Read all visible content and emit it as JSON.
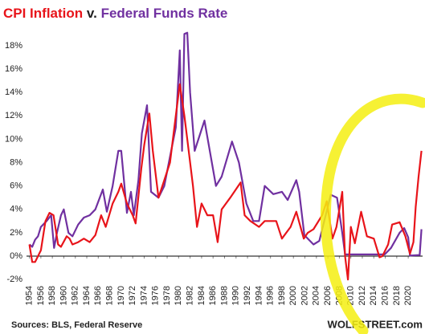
{
  "chart_data": {
    "type": "line",
    "title": [
      "CPI Inflation",
      "v.",
      "Federal Funds Rate"
    ],
    "source": "Sources: BLS, Federal Reserve",
    "watermark": "WOLFSTREET.com",
    "xlim": [
      1953.5,
      2022.5
    ],
    "xticks": [
      1954,
      1956,
      1958,
      1960,
      1962,
      1964,
      1966,
      1968,
      1970,
      1972,
      1974,
      1976,
      1978,
      1980,
      1982,
      1984,
      1986,
      1988,
      1990,
      1992,
      1994,
      1996,
      1998,
      2000,
      2002,
      2004,
      2006,
      2008,
      2010,
      2012,
      2014,
      2016,
      2018,
      2020
    ],
    "ylim": [
      -2.4,
      19.5
    ],
    "yticks": [
      {
        "value": -2,
        "label": "-2%"
      },
      {
        "value": 0,
        "label": "0%"
      },
      {
        "value": 2,
        "label": "2%"
      },
      {
        "value": 4,
        "label": "4%"
      },
      {
        "value": 6,
        "label": "6%"
      },
      {
        "value": 8,
        "label": "8%"
      },
      {
        "value": 10,
        "label": "10%"
      },
      {
        "value": 12,
        "label": "12%"
      },
      {
        "value": 14,
        "label": "14%"
      },
      {
        "value": 16,
        "label": "16%"
      },
      {
        "value": 18,
        "label": "18%"
      }
    ],
    "grid": false,
    "series": [
      {
        "name": "Federal Funds Rate",
        "color": "#7030a0",
        "x": [
          1954.0,
          1954.5,
          1955.0,
          1955.5,
          1956.0,
          1957.0,
          1957.8,
          1958.3,
          1958.8,
          1959.5,
          1960.0,
          1960.8,
          1961.5,
          1962.5,
          1963.5,
          1964.5,
          1965.5,
          1966.8,
          1967.5,
          1968.5,
          1969.5,
          1970.0,
          1971.0,
          1971.7,
          1972.2,
          1973.0,
          1973.6,
          1974.5,
          1975.2,
          1976.5,
          1977.5,
          1978.5,
          1979.5,
          1980.2,
          1980.6,
          1981.0,
          1981.5,
          1982.0,
          1982.8,
          1984.5,
          1986.5,
          1987.5,
          1989.3,
          1990.5,
          1991.8,
          1993.0,
          1994.0,
          1995.0,
          1996.5,
          1998.0,
          1999.0,
          2000.5,
          2001.0,
          2001.9,
          2003.5,
          2004.5,
          2006.5,
          2007.6,
          2008.5,
          2009.0,
          2015.9,
          2017.0,
          2018.5,
          2019.3,
          2020.0,
          2020.3,
          2022.0,
          2022.3
        ],
        "values": [
          1.0,
          0.8,
          1.4,
          1.7,
          2.5,
          3.0,
          3.5,
          0.7,
          2.0,
          3.5,
          4.0,
          2.0,
          1.7,
          2.7,
          3.3,
          3.5,
          4.0,
          5.7,
          3.8,
          6.0,
          9.0,
          9.0,
          3.7,
          5.5,
          3.5,
          6.5,
          10.5,
          12.9,
          5.5,
          5.0,
          6.0,
          8.5,
          11.0,
          17.6,
          9.0,
          19.0,
          19.1,
          14.0,
          9.0,
          11.6,
          6.0,
          6.8,
          9.8,
          8.0,
          4.5,
          3.0,
          3.0,
          6.0,
          5.3,
          5.5,
          4.8,
          6.5,
          5.5,
          1.8,
          1.0,
          1.3,
          5.25,
          5.0,
          2.0,
          0.15,
          0.15,
          0.7,
          2.0,
          2.4,
          1.6,
          0.05,
          0.1,
          2.3
        ]
      },
      {
        "name": "CPI Inflation",
        "color": "#e8141a",
        "x": [
          1954.0,
          1954.5,
          1955.0,
          1955.5,
          1956.0,
          1956.8,
          1957.5,
          1958.2,
          1959.0,
          1959.5,
          1960.5,
          1961.0,
          1961.5,
          1962.5,
          1963.5,
          1964.5,
          1965.5,
          1966.5,
          1967.3,
          1968.5,
          1969.5,
          1970.0,
          1971.0,
          1972.0,
          1972.5,
          1973.5,
          1974.0,
          1974.9,
          1975.5,
          1976.5,
          1977.5,
          1978.5,
          1979.5,
          1980.2,
          1981.0,
          1981.5,
          1982.5,
          1983.2,
          1984.0,
          1985.0,
          1986.0,
          1986.8,
          1987.5,
          1989.0,
          1990.8,
          1991.5,
          1992.5,
          1994.0,
          1995.0,
          1997.0,
          1998.0,
          1999.5,
          2000.5,
          2001.8,
          2002.5,
          2003.5,
          2005.0,
          2005.8,
          2006.8,
          2007.5,
          2008.5,
          2009.0,
          2009.5,
          2010.0,
          2010.7,
          2011.8,
          2012.8,
          2014.0,
          2015.0,
          2015.5,
          2016.5,
          2017.2,
          2018.5,
          2019.5,
          2020.3,
          2020.9,
          2021.3,
          2021.8,
          2022.3
        ],
        "values": [
          1.0,
          -0.5,
          -0.5,
          0.0,
          0.5,
          3.0,
          3.7,
          3.5,
          1.0,
          0.8,
          1.7,
          1.5,
          1.0,
          1.2,
          1.5,
          1.2,
          1.8,
          3.5,
          2.5,
          4.5,
          5.5,
          6.2,
          4.5,
          3.5,
          2.8,
          7.5,
          9.5,
          12.2,
          9.0,
          5.0,
          6.5,
          8.0,
          12.0,
          14.7,
          12.0,
          10.0,
          6.0,
          2.5,
          4.5,
          3.5,
          3.5,
          1.2,
          4.0,
          5.0,
          6.3,
          3.5,
          3.0,
          2.5,
          3.0,
          3.0,
          1.5,
          2.5,
          3.8,
          1.5,
          2.0,
          2.3,
          3.5,
          4.7,
          1.5,
          2.5,
          5.5,
          0.0,
          -2.0,
          2.5,
          1.1,
          3.8,
          1.7,
          1.5,
          -0.1,
          0.0,
          1.0,
          2.7,
          2.9,
          1.7,
          0.2,
          1.2,
          4.2,
          6.8,
          9.0
        ]
      }
    ]
  }
}
